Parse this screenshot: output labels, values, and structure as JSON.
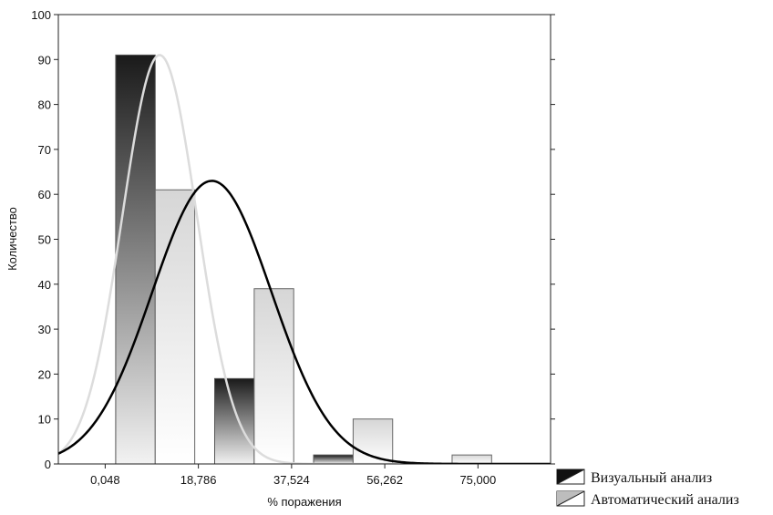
{
  "chart_data": {
    "type": "bar",
    "xlabel": "% поражения",
    "ylabel": "Количество",
    "xlim": [
      -9.37,
      89.6
    ],
    "ylim": [
      0,
      100
    ],
    "y_ticks": [
      0,
      10,
      20,
      30,
      40,
      50,
      60,
      70,
      80,
      90,
      100
    ],
    "x_ticks": [
      "0,048",
      "18,786",
      "37,524",
      "56,262",
      "75,000"
    ],
    "x_tick_values": [
      0.048,
      18.786,
      37.524,
      56.262,
      75.0
    ],
    "bin_width": 7.945,
    "grid": false,
    "legend_position": "bottom-right",
    "series": [
      {
        "name": "Визуальный анализ",
        "color": "#1a1a1a",
        "bins": [
          {
            "x0": 2.16,
            "value": 91
          },
          {
            "x0": 22.06,
            "value": 19
          },
          {
            "x0": 41.95,
            "value": 2
          }
        ],
        "fit_curve": {
          "peak": 91,
          "mean": 11.0,
          "sd": 7.5,
          "color": "#dcdcdc"
        }
      },
      {
        "name": "Автоматический анализ",
        "color": "#bdbdbd",
        "bins": [
          {
            "x0": 10.11,
            "value": 61
          },
          {
            "x0": 30.01,
            "value": 39
          },
          {
            "x0": 49.9,
            "value": 10
          },
          {
            "x0": 69.8,
            "value": 2
          }
        ],
        "fit_curve": {
          "peak": 63,
          "mean": 21.5,
          "sd": 12.0,
          "color": "#000000"
        }
      }
    ]
  }
}
